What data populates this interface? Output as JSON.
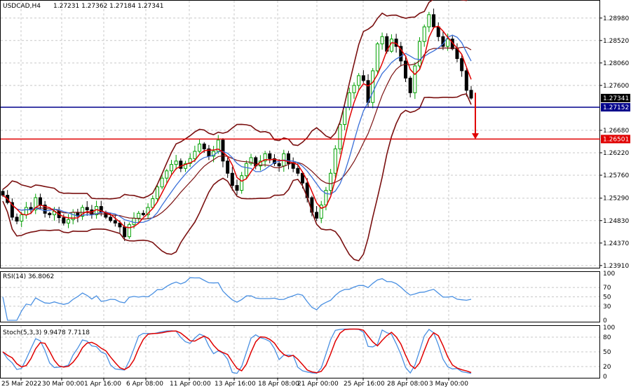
{
  "chart_data": {
    "type": "candlestick",
    "symbol_header": "USDCAD,H4",
    "ohlc_header": "1.27231 1.27362 1.27184 1.27341",
    "main_panel": {
      "ylim": [
        1.2385,
        1.2935
      ],
      "y_ticks": [
        "1.28980",
        "1.28520",
        "1.28060",
        "1.27600",
        "1.26680",
        "1.26220",
        "1.25760",
        "1.25290",
        "1.24830",
        "1.24370",
        "1.23910"
      ],
      "current_price_label": "1.27341",
      "horizontal_lines": [
        {
          "label": "1.27152",
          "value": 1.27152,
          "color": "#00008b"
        },
        {
          "label": "1.26501",
          "value": 1.26501,
          "color": "#e00000"
        }
      ],
      "closes": [
        1.2535,
        1.252,
        1.249,
        1.2482,
        1.2495,
        1.251,
        1.2505,
        1.253,
        1.2515,
        1.2498,
        1.2495,
        1.2502,
        1.2489,
        1.2478,
        1.2485,
        1.25,
        1.2492,
        1.251,
        1.2505,
        1.2495,
        1.2512,
        1.25,
        1.249,
        1.2483,
        1.2478,
        1.247,
        1.245,
        1.2475,
        1.2488,
        1.2498,
        1.2495,
        1.251,
        1.2528,
        1.2552,
        1.257,
        1.2585,
        1.2598,
        1.2605,
        1.259,
        1.26,
        1.261,
        1.2625,
        1.264,
        1.263,
        1.2615,
        1.2625,
        1.2648,
        1.2605,
        1.258,
        1.2555,
        1.2545,
        1.2575,
        1.26,
        1.2612,
        1.2595,
        1.2605,
        1.262,
        1.261,
        1.26,
        1.2595,
        1.262,
        1.26,
        1.259,
        1.258,
        1.256,
        1.253,
        1.25,
        1.2488,
        1.2515,
        1.2545,
        1.258,
        1.263,
        1.268,
        1.2715,
        1.2745,
        1.276,
        1.278,
        1.277,
        1.2725,
        1.279,
        1.2845,
        1.286,
        1.283,
        1.2855,
        1.284,
        1.281,
        1.2775,
        1.2745,
        1.28,
        1.285,
        1.288,
        1.2905,
        1.288,
        1.286,
        1.284,
        1.2855,
        1.2835,
        1.2815,
        1.279,
        1.275,
        1.2734
      ],
      "indicators": "Bollinger Bands, moving averages"
    },
    "rsi_panel": {
      "label": "RSI(14) 36.8062",
      "ylim": [
        0,
        100
      ],
      "y_ticks": [
        "100",
        "70",
        "50",
        "30",
        "0"
      ],
      "levels": [
        30,
        50,
        70
      ]
    },
    "stoch_panel": {
      "label": "Stoch(5,3,3) 9.9478 7.7118",
      "ylim": [
        0,
        100
      ],
      "y_ticks": [
        "100",
        "80",
        "50",
        "20",
        "0"
      ],
      "levels": [
        20,
        50,
        80
      ]
    },
    "x_ticks": [
      "25 Mar 2022",
      "30 Mar 00:00",
      "1 Apr 16:00",
      "6 Apr 08:00",
      "11 Apr 00:00",
      "13 Apr 16:00",
      "18 Apr 08:00",
      "21 Apr 00:00",
      "25 Apr 16:00",
      "28 Apr 08:00",
      "3 May 00:00"
    ]
  },
  "colors": {
    "bull_candle": "#00a000",
    "bear_candle": "#000000",
    "bollinger": "#7a1010",
    "ma_fast": "#e00000",
    "ma_slow": "#3a6fd8",
    "rsi_line": "#4a90e2",
    "stoch_main": "#4a90e2",
    "stoch_signal": "#e00000",
    "grid": "#c8c8c8"
  }
}
